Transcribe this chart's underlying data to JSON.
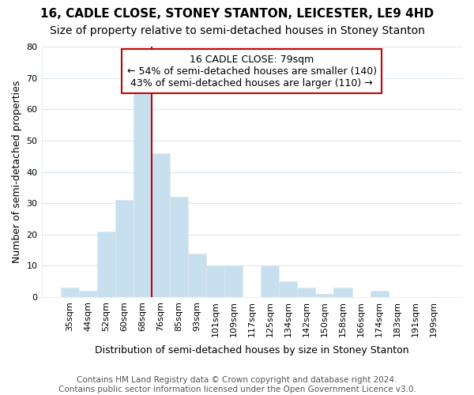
{
  "title": "16, CADLE CLOSE, STONEY STANTON, LEICESTER, LE9 4HD",
  "subtitle": "Size of property relative to semi-detached houses in Stoney Stanton",
  "xlabel": "Distribution of semi-detached houses by size in Stoney Stanton",
  "ylabel": "Number of semi-detached properties",
  "categories": [
    "35sqm",
    "44sqm",
    "52sqm",
    "60sqm",
    "68sqm",
    "76sqm",
    "85sqm",
    "93sqm",
    "101sqm",
    "109sqm",
    "117sqm",
    "125sqm",
    "134sqm",
    "142sqm",
    "150sqm",
    "158sqm",
    "166sqm",
    "174sqm",
    "183sqm",
    "191sqm",
    "199sqm"
  ],
  "values": [
    3,
    2,
    21,
    31,
    65,
    46,
    32,
    14,
    10,
    10,
    0,
    10,
    5,
    3,
    1,
    3,
    0,
    2,
    0,
    0,
    0
  ],
  "highlight_index": 4,
  "highlight_color": "#aec8e0",
  "bar_color": "#c8dff0",
  "vline_after_index": 5,
  "annotation_text": "16 CADLE CLOSE: 79sqm\n← 54% of semi-detached houses are smaller (140)\n43% of semi-detached houses are larger (110) →",
  "annotation_box_color": "#ffffff",
  "annotation_box_edge": "#cc0000",
  "vline_color": "#cc0000",
  "ylim": [
    0,
    80
  ],
  "yticks": [
    0,
    10,
    20,
    30,
    40,
    50,
    60,
    70,
    80
  ],
  "footer": "Contains HM Land Registry data © Crown copyright and database right 2024.\nContains public sector information licensed under the Open Government Licence v3.0.",
  "title_fontsize": 11,
  "subtitle_fontsize": 10,
  "xlabel_fontsize": 9,
  "ylabel_fontsize": 9,
  "tick_fontsize": 8,
  "annotation_fontsize": 9,
  "footer_fontsize": 7.5,
  "background_color": "#ffffff",
  "grid_color": "#dce8f0"
}
